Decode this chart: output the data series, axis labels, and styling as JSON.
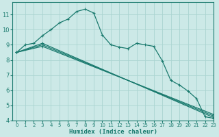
{
  "xlabel": "Humidex (Indice chaleur)",
  "xlim": [
    -0.5,
    23
  ],
  "ylim": [
    4,
    11.8
  ],
  "yticks": [
    4,
    5,
    6,
    7,
    8,
    9,
    10,
    11
  ],
  "xticks": [
    0,
    1,
    2,
    3,
    4,
    5,
    6,
    7,
    8,
    9,
    10,
    11,
    12,
    13,
    14,
    15,
    16,
    17,
    18,
    19,
    20,
    21,
    22,
    23
  ],
  "bg_color": "#cce9e7",
  "line_color": "#1a7a6e",
  "grid_color": "#aad4d1",
  "lines": [
    {
      "x": [
        0,
        1,
        2,
        3,
        4,
        5,
        6,
        7,
        8,
        9,
        10,
        11,
        12,
        13,
        14,
        15,
        16,
        17,
        18,
        19,
        20,
        21,
        22,
        23
      ],
      "y": [
        8.5,
        9.0,
        9.1,
        9.6,
        10.0,
        10.45,
        10.7,
        11.2,
        11.35,
        11.1,
        9.65,
        9.0,
        8.85,
        8.75,
        9.1,
        9.0,
        8.9,
        7.95,
        6.65,
        6.35,
        5.95,
        5.45,
        4.25,
        4.15
      ]
    },
    {
      "x": [
        0,
        3,
        23
      ],
      "y": [
        8.5,
        9.1,
        4.2
      ]
    },
    {
      "x": [
        0,
        3,
        23
      ],
      "y": [
        8.5,
        9.0,
        4.3
      ]
    },
    {
      "x": [
        0,
        3,
        23
      ],
      "y": [
        8.5,
        8.9,
        4.4
      ]
    }
  ]
}
